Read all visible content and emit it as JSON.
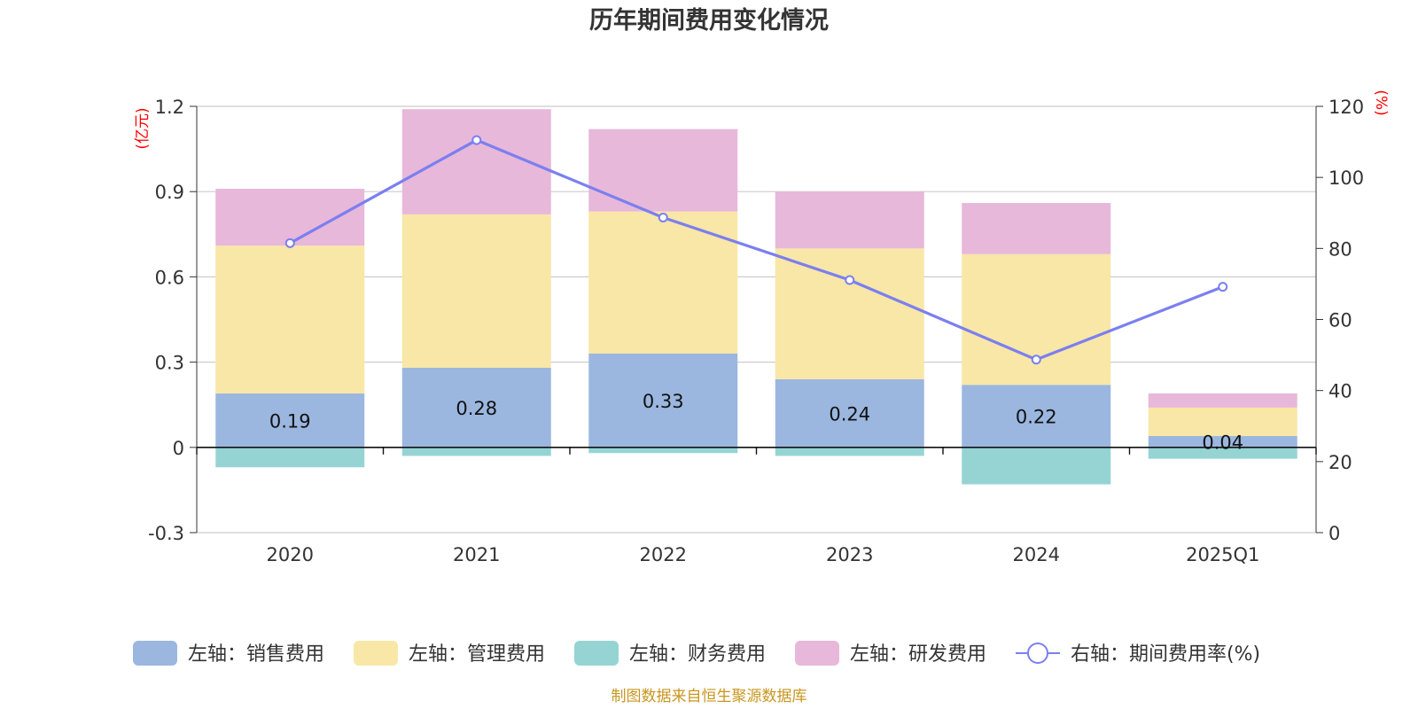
{
  "chart_data": {
    "type": "bar",
    "stacked": true,
    "title": "历年期间费用变化情况",
    "categories": [
      "2020",
      "2021",
      "2022",
      "2023",
      "2024",
      "2025Q1"
    ],
    "left_axis": {
      "unit": "(亿元)",
      "ylim": [
        -0.3,
        1.2
      ],
      "ticks": [
        "1.2",
        "0.9",
        "0.6",
        "0.3",
        "0",
        "-0.3"
      ],
      "tick_values": [
        1.2,
        0.9,
        0.6,
        0.3,
        0,
        -0.3
      ]
    },
    "right_axis": {
      "unit": "(%)",
      "ylim": [
        0,
        120
      ],
      "ticks": [
        "120",
        "100",
        "80",
        "60",
        "40",
        "20",
        "0"
      ],
      "tick_values": [
        120,
        100,
        80,
        60,
        40,
        20,
        0
      ]
    },
    "series": [
      {
        "name": "左轴：销售费用",
        "axis": "left",
        "type": "bar",
        "color": "#9bb7e0",
        "values": [
          0.19,
          0.28,
          0.33,
          0.24,
          0.22,
          0.04
        ],
        "labels": [
          "0.19",
          "0.28",
          "0.33",
          "0.24",
          "0.22",
          "0.04"
        ]
      },
      {
        "name": "左轴：管理费用",
        "axis": "left",
        "type": "bar",
        "color": "#f8e7a6",
        "values": [
          0.52,
          0.54,
          0.5,
          0.46,
          0.46,
          0.1
        ]
      },
      {
        "name": "左轴：财务费用",
        "axis": "left",
        "type": "bar",
        "color": "#96d4d4",
        "values": [
          -0.07,
          -0.03,
          -0.02,
          -0.03,
          -0.13,
          -0.04
        ]
      },
      {
        "name": "左轴：研发费用",
        "axis": "left",
        "type": "bar",
        "color": "#e7b8d9",
        "values": [
          0.2,
          0.37,
          0.29,
          0.2,
          0.18,
          0.05
        ]
      },
      {
        "name": "右轴：期间费用率(%)",
        "axis": "right",
        "type": "line",
        "color": "#7b7ff0",
        "values": [
          81.5,
          110.5,
          88.7,
          71.1,
          48.7,
          69.2
        ]
      }
    ]
  },
  "source": "制图数据来自恒生聚源数据库"
}
